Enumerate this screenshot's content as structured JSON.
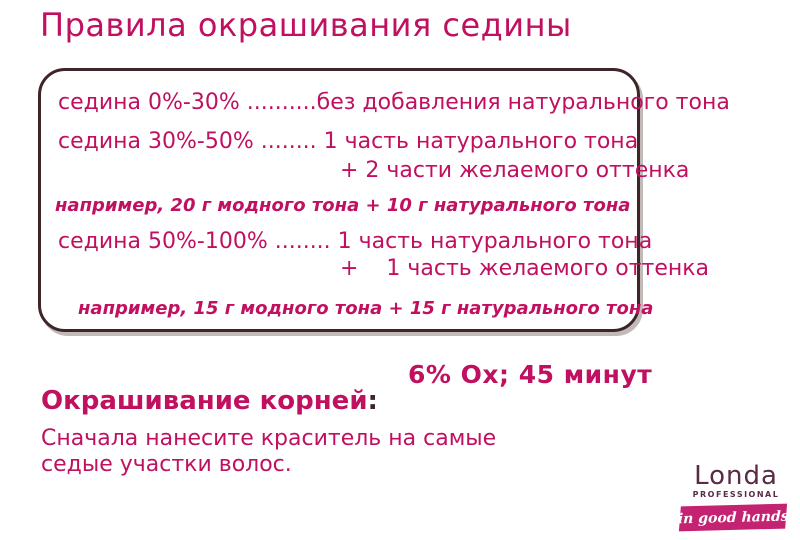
{
  "colors": {
    "accent_magenta": "#c0105f",
    "box_border_dark": "#3e2527",
    "logo_maroon": "#5b2a44",
    "banner_pink": "#c42372",
    "background": "#ffffff"
  },
  "title": "Правила окрашивания седины",
  "rules_box": {
    "rules": [
      {
        "line": "седина 0%-30% ..........без добавления натурального тона"
      },
      {
        "line": "седина 30%-50% ........ 1 часть натурального тона",
        "line2": "+ 2 части желаемого оттенка",
        "example": "например, 20 г модного тона + 10 г натурального тона"
      },
      {
        "line": "седина 50%-100% ........ 1 часть натурального тона",
        "line2": "+    1 часть желаемого оттенка",
        "example": "например, 15 г модного тона + 15 г натурального тона"
      }
    ]
  },
  "notes": {
    "oxidant_time": "6% Ox; 45 минут",
    "roots_heading": "Окрашивание корней",
    "roots_colon": ":",
    "roots_text": "Сначала нанесите краситель на самые\nседые участки волос."
  },
  "logo": {
    "brand": "Londa",
    "subbrand": "PROFESSIONAL",
    "tagline": "in good hands"
  }
}
